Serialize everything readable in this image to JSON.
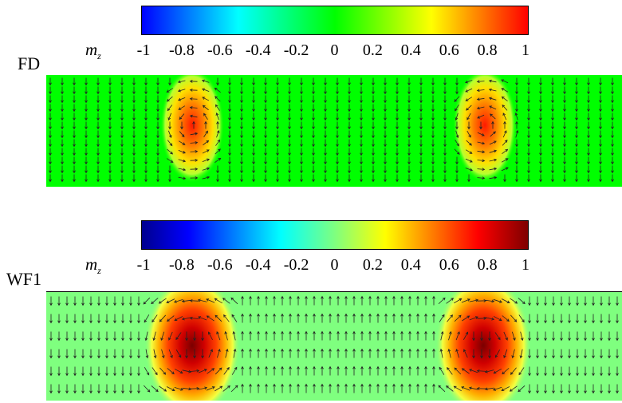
{
  "panels": [
    {
      "label": "FD",
      "colorbar_label": "m",
      "colorbar_label_sub": "z",
      "colorbar_ticks": [
        "-1",
        "-0.8",
        "-0.6",
        "-0.4",
        "-0.2",
        "0",
        "0.2",
        "0.4",
        "0.6",
        "0.8",
        "1"
      ],
      "colormap": "jet-like (blue → cyan → green → yellow → red)",
      "colors": [
        "#0000ff",
        "#00ffff",
        "#00ff00",
        "#ffff00",
        "#ff0000"
      ],
      "background_mz": 0,
      "features": "two elongated red spots (mz≈0.8) with circulating arrows on a green field, arrows pointing down"
    },
    {
      "label": "WF1",
      "colorbar_label": "m",
      "colorbar_label_sub": "z",
      "colorbar_ticks": [
        "-1",
        "-0.8",
        "-0.6",
        "-0.4",
        "-0.2",
        "0",
        "0.2",
        "0.4",
        "0.6",
        "0.8",
        "1"
      ],
      "colormap": "jet (dark blue → blue → cyan → green → yellow → red → dark red)",
      "colors": [
        "#00008f",
        "#0000ff",
        "#00ffff",
        "#7fff7f",
        "#ffff00",
        "#ff0000",
        "#7f0000"
      ],
      "background_mz": 0,
      "features": "two red/dark-red elliptical spots; arrows pointing down outside, up between the spots"
    }
  ]
}
